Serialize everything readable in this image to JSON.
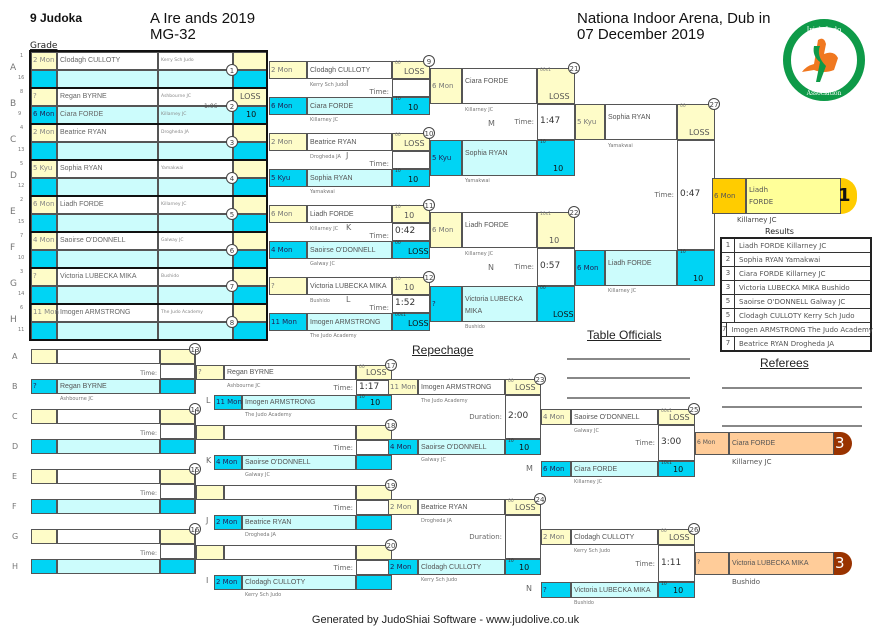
{
  "header": {
    "count": "9 Judoka",
    "title": "A   Ire ands 2019",
    "category": "MG-32",
    "venue": "Nationa  Indoor Arena, Dub in",
    "date": "07 December 2019",
    "grade_label": "Grade"
  },
  "logo": {
    "text_top": "Irish Judo",
    "text_bottom": "Association",
    "ring_color": "#0e9a48",
    "accent": "#f07820"
  },
  "colors": {
    "yellow": "#fefcc8",
    "cyan": "#00d4f4",
    "light_cyan": "#ccfcfc",
    "gold": "#ffcc00",
    "bronze": "#ffcc99",
    "bronze_dark": "#993300"
  },
  "labels": {
    "time": "Time:",
    "duration": "Duration:"
  },
  "pool": [
    {
      "letter": "A",
      "seed_top": "1",
      "seed_bottom": "16",
      "match": "1",
      "top": {
        "grade": "2 Mon",
        "name": "Clodagh CULLOTY",
        "club": "Kerry Sch Judo"
      },
      "bottom": {
        "grade": "",
        "name": "",
        "club": ""
      },
      "score_top": "",
      "score_bottom": "",
      "time": ""
    },
    {
      "letter": "B",
      "seed_top": "8",
      "seed_bottom": "9",
      "match": "2",
      "top": {
        "grade": "?",
        "name": "Regan BYRNE",
        "club": "Ashbourne JC"
      },
      "bottom": {
        "grade": "6 Mon",
        "name": "Ciara FORDE",
        "club": "Killarney JC"
      },
      "score_top": "LOSS",
      "score_bottom": "10",
      "time": "1:06"
    },
    {
      "letter": "C",
      "seed_top": "4",
      "seed_bottom": "13",
      "match": "3",
      "top": {
        "grade": "2 Mon",
        "name": "Beatrice RYAN",
        "club": "Drogheda JA"
      },
      "bottom": {
        "grade": "",
        "name": "",
        "club": ""
      },
      "score_top": "",
      "score_bottom": "",
      "time": ""
    },
    {
      "letter": "D",
      "seed_top": "5",
      "seed_bottom": "12",
      "match": "4",
      "top": {
        "grade": "5 Kyu",
        "name": "Sophia RYAN",
        "club": "Yamakwai"
      },
      "bottom": {
        "grade": "",
        "name": "",
        "club": ""
      },
      "score_top": "",
      "score_bottom": "",
      "time": ""
    },
    {
      "letter": "E",
      "seed_top": "2",
      "seed_bottom": "15",
      "match": "5",
      "top": {
        "grade": "6 Mon",
        "name": "Liadh FORDE",
        "club": "Killarney JC"
      },
      "bottom": {
        "grade": "",
        "name": "",
        "club": ""
      },
      "score_top": "",
      "score_bottom": "",
      "time": ""
    },
    {
      "letter": "F",
      "seed_top": "7",
      "seed_bottom": "10",
      "match": "6",
      "top": {
        "grade": "4 Mon",
        "name": "Saoirse O'DONNELL",
        "club": "Galway JC"
      },
      "bottom": {
        "grade": "",
        "name": "",
        "club": ""
      },
      "score_top": "",
      "score_bottom": "",
      "time": ""
    },
    {
      "letter": "G",
      "seed_top": "3",
      "seed_bottom": "14",
      "match": "7",
      "top": {
        "grade": "?",
        "name": "Victoria LUBECKA MIKA",
        "club": "Bushido"
      },
      "bottom": {
        "grade": "",
        "name": "",
        "club": ""
      },
      "score_top": "",
      "score_bottom": "",
      "time": ""
    },
    {
      "letter": "H",
      "seed_top": "6",
      "seed_bottom": "11",
      "match": "8",
      "top": {
        "grade": "11 Mon",
        "name": "Imogen ARMSTRONG",
        "club": "The Judo Academy"
      },
      "bottom": {
        "grade": "",
        "name": "",
        "club": ""
      },
      "score_top": "",
      "score_bottom": "",
      "time": ""
    }
  ],
  "matches": {
    "m9": {
      "number": "9",
      "letter": "I",
      "time": "",
      "top": {
        "grade": "2 Mon",
        "name": "Clodagh CULLOTY",
        "club": "Kerry Sch Judo",
        "score": "LOSS",
        "code": "00"
      },
      "bottom": {
        "grade": "6 Mon",
        "name": "Ciara FORDE",
        "club": "Killarney JC",
        "score": "10",
        "code": "10"
      }
    },
    "m10": {
      "number": "10",
      "letter": "J",
      "time": "",
      "top": {
        "grade": "2 Mon",
        "name": "Beatrice RYAN",
        "club": "Drogheda JA",
        "score": "LOSS",
        "code": "00"
      },
      "bottom": {
        "grade": "5 Kyu",
        "name": "Sophia RYAN",
        "club": "Yamakwai",
        "score": "10",
        "code": "10"
      }
    },
    "m11": {
      "number": "11",
      "letter": "K",
      "time": "0:42",
      "top": {
        "grade": "6 Mon",
        "name": "Liadh FORDE",
        "club": "Killarney JC",
        "score": "10",
        "code": "10"
      },
      "bottom": {
        "grade": "4 Mon",
        "name": "Saoirse O'DONNELL",
        "club": "Galway JC",
        "score": "LOSS",
        "code": "00"
      }
    },
    "m12": {
      "number": "12",
      "letter": "L",
      "time": "1:52",
      "top": {
        "grade": "?",
        "name": "Victoria LUBECKA MIKA",
        "club": "Bushido",
        "score": "10",
        "code": "10"
      },
      "bottom": {
        "grade": "11 Mon",
        "name": "Imogen ARMSTRONG",
        "club": "The Judo Academy",
        "score": "LOSS",
        "code": "00s1"
      }
    },
    "m21": {
      "number": "21",
      "letter": "M",
      "time": "1:47",
      "top": {
        "grade": "6 Mon",
        "name": "Ciara FORDE",
        "club": "Killarney JC",
        "score": "LOSS",
        "code": "00s1"
      },
      "bottom": {
        "grade": "5 Kyu",
        "name": "Sophia RYAN",
        "club": "Yamakwai",
        "score": "10",
        "code": "10"
      }
    },
    "m22": {
      "number": "22",
      "letter": "N",
      "time": "0:57",
      "top": {
        "grade": "6 Mon",
        "name": "Liadh FORDE",
        "club": "Killarney JC",
        "score": "10",
        "code": "10s1"
      },
      "bottom": {
        "grade": "?",
        "name": "Victoria LUBECKA MIKA",
        "club": "Bushido",
        "score": "LOSS",
        "code": "00"
      }
    },
    "m27": {
      "number": "27",
      "letter": "",
      "time": "0:47",
      "top": {
        "grade": "5 Kyu",
        "name": "Sophia RYAN",
        "club": "Yamakwai",
        "score": "LOSS",
        "code": "00"
      },
      "bottom": {
        "grade": "6 Mon",
        "name": "Liadh FORDE",
        "club": "Killarney JC",
        "score": "10",
        "code": "10"
      }
    },
    "m17": {
      "number": "17",
      "letter": "L",
      "time": "1:17",
      "top": {
        "grade": "?",
        "name": "Regan BYRNE",
        "club": "Ashbourne JC",
        "score": "LOSS",
        "code": "00"
      },
      "bottom": {
        "grade": "11 Mon",
        "name": "Imogen ARMSTRONG",
        "club": "The Judo Academy",
        "score": "10",
        "code": "10"
      }
    },
    "m18": {
      "number": "18",
      "letter": "K",
      "time": "",
      "top": {
        "grade": "",
        "name": "",
        "club": "",
        "score": "",
        "code": ""
      },
      "bottom": {
        "grade": "4 Mon",
        "name": "Saoirse O'DONNELL",
        "club": "Galway JC",
        "score": "",
        "code": ""
      }
    },
    "m19": {
      "number": "19",
      "letter": "J",
      "time": "",
      "top": {
        "grade": "",
        "name": "",
        "club": "",
        "score": "",
        "code": ""
      },
      "bottom": {
        "grade": "2 Mon",
        "name": "Beatrice RYAN",
        "club": "Drogheda JA",
        "score": "",
        "code": ""
      }
    },
    "m20": {
      "number": "20",
      "letter": "I",
      "time": "",
      "top": {
        "grade": "",
        "name": "",
        "club": "",
        "score": "",
        "code": ""
      },
      "bottom": {
        "grade": "2 Mon",
        "name": "Clodagh CULLOTY",
        "club": "Kerry Sch Judo",
        "score": "",
        "code": ""
      }
    },
    "m23": {
      "number": "23",
      "letter": "",
      "time": "2:00",
      "top": {
        "grade": "11 Mon",
        "name": "Imogen ARMSTRONG",
        "club": "The Judo Academy",
        "score": "LOSS",
        "code": "00"
      },
      "bottom": {
        "grade": "4 Mon",
        "name": "Saoirse O'DONNELL",
        "club": "Galway JC",
        "score": "10",
        "code": "10"
      }
    },
    "m24": {
      "number": "24",
      "letter": "",
      "time": "",
      "top": {
        "grade": "2 Mon",
        "name": "Beatrice RYAN",
        "club": "Drogheda JA",
        "score": "LOSS",
        "code": "00"
      },
      "bottom": {
        "grade": "2 Mon",
        "name": "Clodagh CULLOTY",
        "club": "Kerry Sch Judo",
        "score": "10",
        "code": "10"
      }
    },
    "m25": {
      "number": "25",
      "letter": "M",
      "time": "3:00",
      "top": {
        "grade": "4 Mon",
        "name": "Saoirse O'DONNELL",
        "club": "Galway JC",
        "score": "LOSS",
        "code": "00s1"
      },
      "bottom": {
        "grade": "6 Mon",
        "name": "Ciara FORDE",
        "club": "Killarney JC",
        "score": "10",
        "code": "10s1"
      }
    },
    "m26": {
      "number": "26",
      "letter": "N",
      "time": "1:11",
      "top": {
        "grade": "2 Mon",
        "name": "Clodagh CULLOTY",
        "club": "Kerry Sch Judo",
        "score": "LOSS",
        "code": "00"
      },
      "bottom": {
        "grade": "?",
        "name": "Victoria LUBECKA MIKA",
        "club": "Bushido",
        "score": "10",
        "code": "10"
      }
    }
  },
  "winner": {
    "grade": "6 Mon",
    "name_first": "Liadh",
    "name_last": "FORDE",
    "club": "Killarney JC",
    "place": "1"
  },
  "bronze": [
    {
      "grade": "6 Mon",
      "name": "Ciara FORDE",
      "club": "Killarney JC",
      "place": "3"
    },
    {
      "grade": "?",
      "name": "Victoria LUBECKA MIKA",
      "club": "Bushido",
      "place": "3"
    }
  ],
  "repechage": {
    "title": "Repechage",
    "rows": [
      {
        "letter": "A",
        "grade": "",
        "name": "",
        "club": ""
      },
      {
        "letter": "B",
        "grade": "?",
        "name": "Regan BYRNE",
        "club": "Ashbourne JC"
      },
      {
        "letter": "C",
        "grade": "",
        "name": "",
        "club": ""
      },
      {
        "letter": "D",
        "grade": "",
        "name": "",
        "club": ""
      },
      {
        "letter": "E",
        "grade": "",
        "name": "",
        "club": ""
      },
      {
        "letter": "F",
        "grade": "",
        "name": "",
        "club": ""
      },
      {
        "letter": "G",
        "grade": "",
        "name": "",
        "club": ""
      },
      {
        "letter": "H",
        "grade": "",
        "name": "",
        "club": ""
      }
    ],
    "match_numbers": [
      "13",
      "14",
      "15",
      "16"
    ]
  },
  "results": {
    "title": "Results",
    "rows": [
      {
        "place": "1",
        "text": "Liadh FORDE Killarney JC"
      },
      {
        "place": "2",
        "text": "Sophia RYAN Yamakwai"
      },
      {
        "place": "3",
        "text": "Ciara FORDE Killarney JC"
      },
      {
        "place": "3",
        "text": "Victoria LUBECKA MIKA Bushido"
      },
      {
        "place": "5",
        "text": "Saoirse O'DONNELL Galway JC"
      },
      {
        "place": "5",
        "text": "Clodagh CULLOTY Kerry Sch Judo"
      },
      {
        "place": "7",
        "text": "Imogen ARMSTRONG The Judo Academy"
      },
      {
        "place": "7",
        "text": "Beatrice RYAN Drogheda JA"
      }
    ]
  },
  "officials": {
    "table_title": "Table Officials",
    "referees_title": "Referees"
  },
  "footer": "Generated by JudoShiai Software - www.judolive.co.uk"
}
